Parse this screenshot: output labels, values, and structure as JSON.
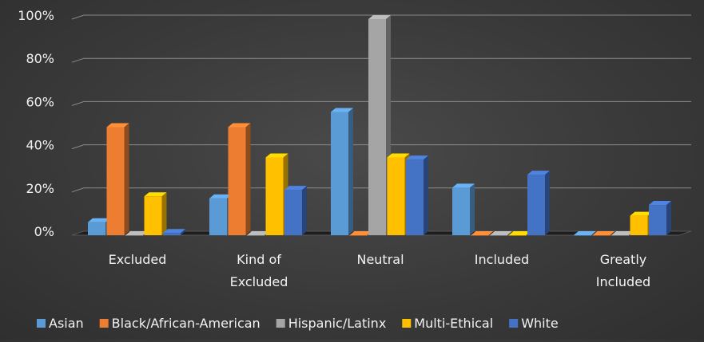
{
  "chart_data": {
    "type": "bar",
    "title": "",
    "xlabel": "",
    "ylabel": "",
    "categories": [
      [
        "Excluded"
      ],
      [
        "Kind of",
        "Excluded"
      ],
      [
        "Neutral"
      ],
      [
        "Included"
      ],
      [
        "Greatly",
        "Included"
      ]
    ],
    "series": [
      {
        "name": "Asian",
        "color": "#5b9bd5",
        "values": [
          6,
          17,
          57,
          22,
          0
        ]
      },
      {
        "name": "Black/African-American",
        "color": "#ed7d31",
        "values": [
          50,
          50,
          0,
          0,
          0
        ]
      },
      {
        "name": "Hispanic/Latinx",
        "color": "#a5a5a5",
        "values": [
          0,
          0,
          100,
          0,
          0
        ]
      },
      {
        "name": "Multi-Ethical",
        "color": "#ffc000",
        "values": [
          18,
          36,
          36,
          0,
          9
        ]
      },
      {
        "name": "White",
        "color": "#4472c4",
        "values": [
          1,
          21,
          35,
          28,
          14
        ]
      }
    ],
    "y_ticks": [
      "0%",
      "20%",
      "40%",
      "60%",
      "80%",
      "100%"
    ],
    "ylim": [
      0,
      100
    ],
    "grid": true,
    "legend_position": "bottom"
  }
}
